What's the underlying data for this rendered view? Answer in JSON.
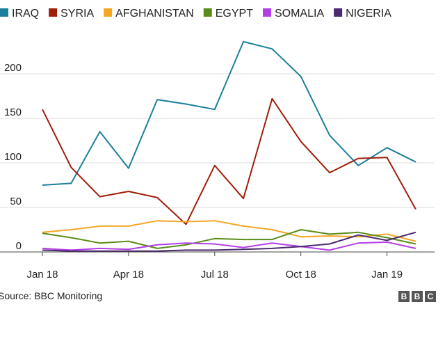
{
  "source_text": "Source: BBC Monitoring",
  "logo_letters": [
    "B",
    "B",
    "C"
  ],
  "chart_data": {
    "type": "line",
    "x": [
      "Jan 18",
      "Feb 18",
      "Mar 18",
      "Apr 18",
      "May 18",
      "Jun 18",
      "Jul 18",
      "Aug 18",
      "Sep 18",
      "Oct 18",
      "Nov 18",
      "Dec 18",
      "Jan 19",
      "Feb 19"
    ],
    "x_tick_labels": [
      "Jan 18",
      "Apr 18",
      "Jul 18",
      "Oct 18",
      "Jan 19"
    ],
    "x_tick_positions": [
      "Jan 18",
      "Apr 18",
      "Jul 18",
      "Oct 18",
      "Jan 19"
    ],
    "y_tick_labels": [
      "0",
      "50",
      "100",
      "150",
      "200"
    ],
    "ylim": [
      0,
      250
    ],
    "grid": "horizontal",
    "legend_position": "top",
    "series": [
      {
        "name": "IRAQ",
        "color": "#1a7f9a",
        "values": [
          75,
          77,
          135,
          94,
          171,
          166,
          160,
          236,
          228,
          197,
          131,
          97,
          117,
          101
        ]
      },
      {
        "name": "SYRIA",
        "color": "#a01e0a",
        "values": [
          160,
          95,
          62,
          68,
          61,
          31,
          97,
          60,
          172,
          124,
          89,
          105,
          106,
          48
        ]
      },
      {
        "name": "AFGHANISTAN",
        "color": "#f5a623",
        "values": [
          22,
          25,
          29,
          29,
          35,
          34,
          35,
          29,
          25,
          17,
          18,
          17,
          20,
          12
        ]
      },
      {
        "name": "EGYPT",
        "color": "#5b8c1a",
        "values": [
          21,
          16,
          10,
          12,
          4,
          8,
          15,
          14,
          14,
          25,
          20,
          22,
          16,
          9
        ]
      },
      {
        "name": "SOMALIA",
        "color": "#b43fe6",
        "values": [
          4,
          2,
          4,
          3,
          8,
          10,
          9,
          5,
          10,
          6,
          2,
          10,
          11,
          4
        ]
      },
      {
        "name": "NIGERIA",
        "color": "#4a2b6e",
        "values": [
          2,
          1,
          1,
          1,
          1,
          2,
          2,
          3,
          4,
          6,
          9,
          19,
          13,
          22
        ]
      }
    ]
  }
}
